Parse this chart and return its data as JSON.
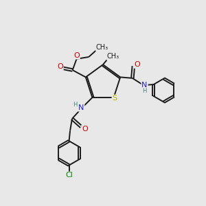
{
  "bg_color": "#e8e8e8",
  "bond_color": "#1a1a1a",
  "S_color": "#b8b800",
  "N_color": "#2020cc",
  "O_color": "#cc0000",
  "Cl_color": "#008800",
  "H_color": "#408080",
  "font_size": 8,
  "small_font": 7,
  "line_width": 1.4,
  "xlim": [
    0,
    10
  ],
  "ylim": [
    0,
    10
  ]
}
